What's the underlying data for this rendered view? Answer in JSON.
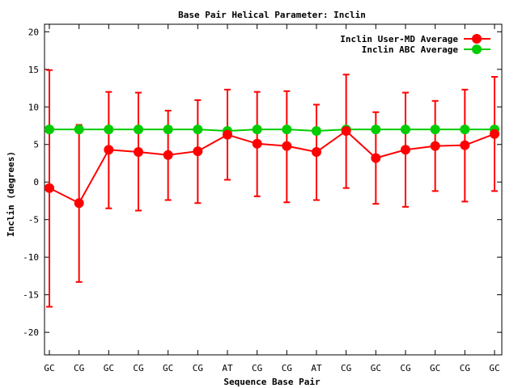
{
  "chart_data": {
    "type": "line",
    "title": "Base Pair Helical Parameter: Inclin",
    "xlabel": "Sequence Base Pair",
    "ylabel": "Inclin (degrees)",
    "categories": [
      "GC",
      "CG",
      "GC",
      "CG",
      "GC",
      "CG",
      "AT",
      "CG",
      "CG",
      "AT",
      "CG",
      "GC",
      "CG",
      "GC",
      "CG",
      "GC"
    ],
    "ylim": [
      -23,
      21
    ],
    "yticks": [
      -20,
      -15,
      -10,
      -5,
      0,
      5,
      10,
      15,
      20
    ],
    "grid": false,
    "legend_position": "top-right",
    "series": [
      {
        "name": "Inclin User-MD Average",
        "color": "#ff0000",
        "values": [
          -0.8,
          -2.8,
          4.3,
          4.0,
          3.6,
          4.1,
          6.3,
          5.1,
          4.8,
          4.0,
          6.8,
          3.2,
          4.3,
          4.8,
          4.9,
          6.4
        ],
        "err_low": [
          -16.6,
          -13.3,
          -3.5,
          -3.8,
          -2.4,
          -2.8,
          0.3,
          -1.9,
          -2.7,
          -2.4,
          -0.8,
          -2.9,
          -3.3,
          -1.2,
          -2.6,
          -1.2
        ],
        "err_high": [
          14.9,
          7.6,
          12.0,
          11.9,
          9.5,
          10.9,
          12.3,
          12.0,
          12.1,
          10.3,
          14.3,
          9.3,
          11.9,
          10.8,
          12.3,
          14.0
        ]
      },
      {
        "name": "Inclin ABC Average",
        "color": "#00cc00",
        "values": [
          7.0,
          7.0,
          7.0,
          7.0,
          7.0,
          7.0,
          6.8,
          7.0,
          7.0,
          6.8,
          7.0,
          7.0,
          7.0,
          7.0,
          7.0,
          7.0
        ]
      }
    ]
  }
}
